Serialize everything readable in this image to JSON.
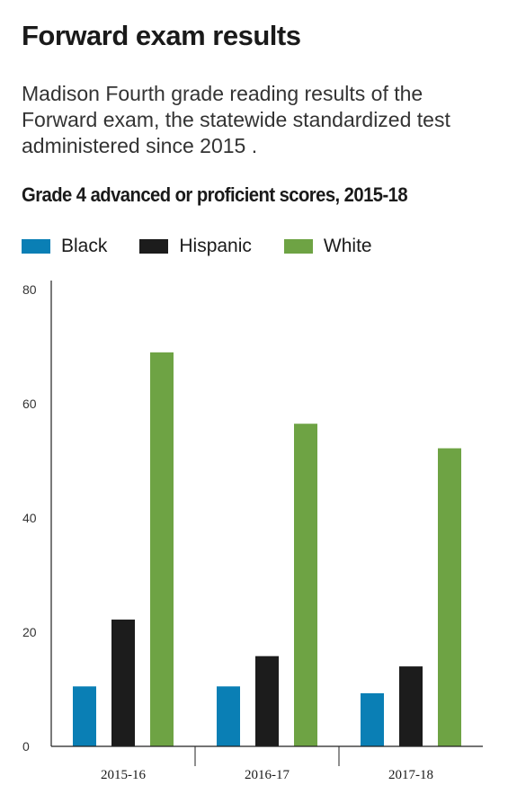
{
  "header": {
    "title": "Forward exam results",
    "subtitle": "Madison Fourth grade reading results of the Forward exam, the statewide standardized test administered since 2015 ."
  },
  "chart_data": {
    "type": "bar",
    "title": "Grade 4 advanced or proficient scores, 2015-18",
    "categories": [
      "2015-16",
      "2016-17",
      "2017-18"
    ],
    "series": [
      {
        "name": "Black",
        "color": "#0a7fb5",
        "values": [
          10.5,
          10.5,
          9.3
        ]
      },
      {
        "name": "Hispanic",
        "color": "#1c1c1c",
        "values": [
          22.2,
          15.8,
          14.0
        ]
      },
      {
        "name": "White",
        "color": "#6ea344",
        "values": [
          69.0,
          56.5,
          52.2
        ]
      }
    ],
    "ylim": [
      0,
      80
    ],
    "yticks": [
      0,
      20,
      40,
      60,
      80
    ],
    "xlabel": "",
    "ylabel": "",
    "grid": false,
    "legend_position": "top-left"
  }
}
